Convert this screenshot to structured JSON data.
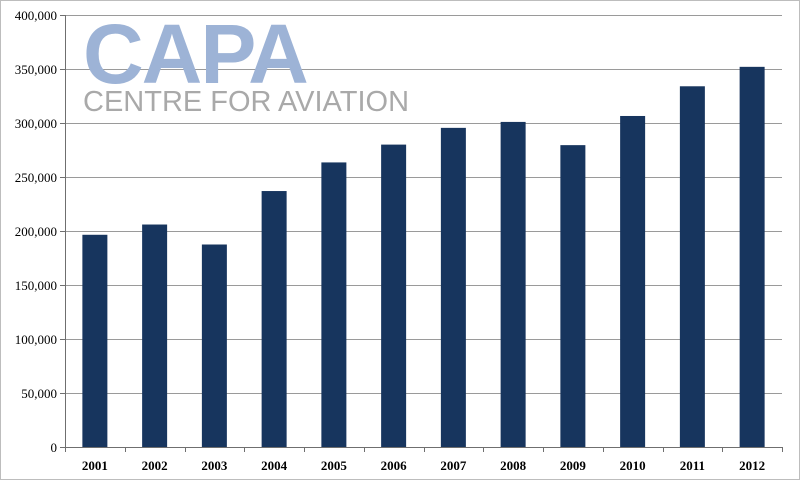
{
  "watermark": {
    "logo": "CAPA",
    "tagline": "CENTRE FOR AVIATION"
  },
  "colors": {
    "bar": "#17355e",
    "grid": "#9a9a9a",
    "axis": "#6f6f6f",
    "logo_primary": "#9db3d6",
    "logo_secondary": "#a9a9a9"
  },
  "chart_data": {
    "type": "bar",
    "title": "",
    "xlabel": "",
    "ylabel": "",
    "categories": [
      "2001",
      "2002",
      "2003",
      "2004",
      "2005",
      "2006",
      "2007",
      "2008",
      "2009",
      "2010",
      "2011",
      "2012"
    ],
    "values": [
      196500,
      206000,
      187500,
      237000,
      263500,
      280000,
      295500,
      301000,
      279500,
      306500,
      334000,
      352000
    ],
    "ylim": [
      0,
      400000
    ],
    "yticks": [
      0,
      50000,
      100000,
      150000,
      200000,
      250000,
      300000,
      350000,
      400000
    ],
    "ytick_labels": [
      "0",
      "50,000",
      "100,000",
      "150,000",
      "200,000",
      "250,000",
      "300,000",
      "350,000",
      "400,000"
    ],
    "grid": true,
    "legend": "none"
  }
}
